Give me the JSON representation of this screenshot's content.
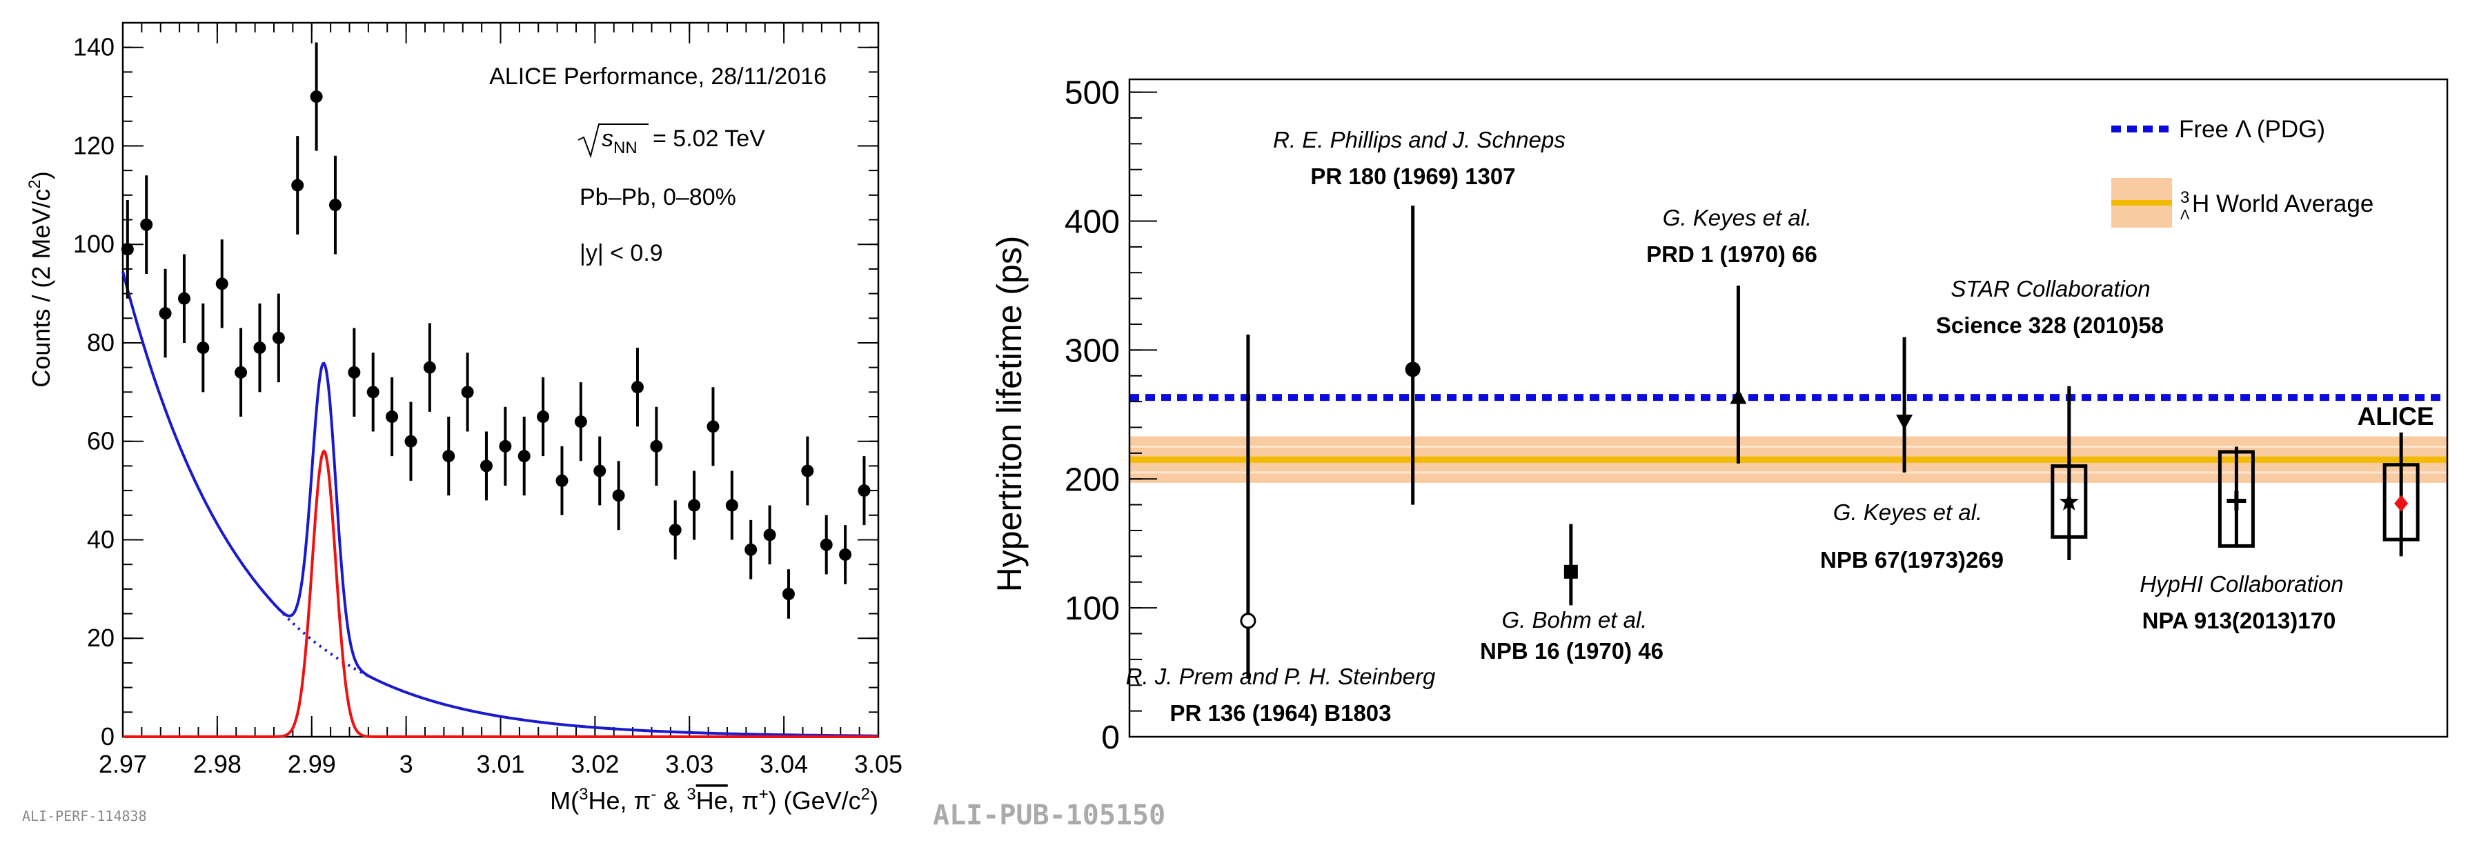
{
  "colors": {
    "fit": "#1a1acc",
    "signal": "#ee1111",
    "pdg": "#0b0bdd",
    "band_outer": "#f8cba0",
    "band_inner": "#f2bb00",
    "alice": "#ee1111",
    "watermark": "#aaaaaa"
  },
  "chart_data": [
    {
      "type": "scatter",
      "title": "ALICE Performance, 28/11/2016",
      "xlabel_parts": {
        "pre": "M(",
        "sup1": "3",
        "he": "He, π",
        "sup2": "-",
        "amp": " & ",
        "sup3": "3",
        "hebar": "He",
        "post": ", π",
        "sup4": "+",
        "unit": ") (GeV/c",
        "sq": "2",
        "close": ")"
      },
      "ylabel_parts": {
        "main": "Counts / (2 MeV/c",
        "sq": "2",
        "close": ")"
      },
      "annotations": {
        "energy_value": "= 5.02 TeV",
        "sqrt_s": "s",
        "nn_sub": "NN",
        "system": "Pb–Pb, 0–80%",
        "rapidity": "|y| < 0.9"
      },
      "xlim": [
        2.97,
        3.05
      ],
      "ylim": [
        0,
        145
      ],
      "xticks": [
        "2.97",
        "2.98",
        "2.99",
        "3",
        "3.01",
        "3.02",
        "3.03",
        "3.04",
        "3.05"
      ],
      "yticks": [
        "0",
        "20",
        "40",
        "60",
        "80",
        "100",
        "120",
        "140"
      ],
      "points": [
        {
          "x": 2.9705,
          "y": 99,
          "e": 10
        },
        {
          "x": 2.9725,
          "y": 104,
          "e": 10
        },
        {
          "x": 2.9745,
          "y": 86,
          "e": 9
        },
        {
          "x": 2.9765,
          "y": 89,
          "e": 9
        },
        {
          "x": 2.9785,
          "y": 79,
          "e": 9
        },
        {
          "x": 2.9805,
          "y": 92,
          "e": 9
        },
        {
          "x": 2.9825,
          "y": 74,
          "e": 9
        },
        {
          "x": 2.9845,
          "y": 79,
          "e": 9
        },
        {
          "x": 2.9865,
          "y": 81,
          "e": 9
        },
        {
          "x": 2.9885,
          "y": 112,
          "e": 10
        },
        {
          "x": 2.9905,
          "y": 130,
          "e": 11
        },
        {
          "x": 2.9925,
          "y": 108,
          "e": 10
        },
        {
          "x": 2.9945,
          "y": 74,
          "e": 9
        },
        {
          "x": 2.9965,
          "y": 70,
          "e": 8
        },
        {
          "x": 2.9985,
          "y": 65,
          "e": 8
        },
        {
          "x": 3.0005,
          "y": 60,
          "e": 8
        },
        {
          "x": 3.0025,
          "y": 75,
          "e": 9
        },
        {
          "x": 3.0045,
          "y": 57,
          "e": 8
        },
        {
          "x": 3.0065,
          "y": 70,
          "e": 8
        },
        {
          "x": 3.0085,
          "y": 55,
          "e": 7
        },
        {
          "x": 3.0105,
          "y": 59,
          "e": 8
        },
        {
          "x": 3.0125,
          "y": 57,
          "e": 8
        },
        {
          "x": 3.0145,
          "y": 65,
          "e": 8
        },
        {
          "x": 3.0165,
          "y": 52,
          "e": 7
        },
        {
          "x": 3.0185,
          "y": 64,
          "e": 8
        },
        {
          "x": 3.0205,
          "y": 54,
          "e": 7
        },
        {
          "x": 3.0225,
          "y": 49,
          "e": 7
        },
        {
          "x": 3.0245,
          "y": 71,
          "e": 8
        },
        {
          "x": 3.0265,
          "y": 59,
          "e": 8
        },
        {
          "x": 3.0285,
          "y": 42,
          "e": 6
        },
        {
          "x": 3.0305,
          "y": 47,
          "e": 7
        },
        {
          "x": 3.0325,
          "y": 63,
          "e": 8
        },
        {
          "x": 3.0345,
          "y": 47,
          "e": 7
        },
        {
          "x": 3.0365,
          "y": 38,
          "e": 6
        },
        {
          "x": 3.0385,
          "y": 41,
          "e": 6
        },
        {
          "x": 3.0405,
          "y": 29,
          "e": 5
        },
        {
          "x": 3.0425,
          "y": 54,
          "e": 7
        },
        {
          "x": 3.0445,
          "y": 39,
          "e": 6
        },
        {
          "x": 3.0465,
          "y": 37,
          "e": 6
        },
        {
          "x": 3.0485,
          "y": 50,
          "e": 7
        }
      ],
      "background": {
        "a": 94.5,
        "b": -0.0783,
        "x0": 2.97,
        "units": "MeV"
      },
      "signal": {
        "mean": 2.9913,
        "sigma": 0.00125,
        "amp": 58
      },
      "watermark": "ALI-PERF-114838"
    },
    {
      "type": "scatter",
      "ylabel": "Hypertriton lifetime (ps)",
      "ylim": [
        0,
        510
      ],
      "yticks": [
        "0",
        "100",
        "200",
        "300",
        "400",
        "500"
      ],
      "pdg": {
        "value": 263.2,
        "label": "Free Λ (PDG)"
      },
      "world_average": {
        "value": 215,
        "err": 18,
        "label_sup": "3",
        "label_sub": "Λ",
        "label_main": "H World Average"
      },
      "measurements": [
        {
          "name": "R. J. Prem and P. H. Steinberg",
          "ref": "PR 136 (1964) B1803",
          "x": 0.09,
          "value": 90,
          "up": 312,
          "low": 45,
          "marker": "open-circle"
        },
        {
          "name": "R. E. Phillips and J. Schneps",
          "ref": "PR 180 (1969) 1307",
          "x": 0.215,
          "value": 285,
          "up": 412,
          "low": 180,
          "marker": "circle"
        },
        {
          "name": "G. Bohm et al.",
          "ref": "NPB 16 (1970) 46",
          "x": 0.335,
          "value": 128,
          "up": 165,
          "low": 102,
          "marker": "square"
        },
        {
          "name": "G. Keyes et al.",
          "ref": "PRD 1 (1970) 66",
          "x": 0.462,
          "value": 263,
          "up": 350,
          "low": 212,
          "marker": "triangle-up"
        },
        {
          "name": "G. Keyes et al.",
          "ref": "NPB 67(1973)269",
          "x": 0.588,
          "value": 245,
          "up": 310,
          "low": 205,
          "marker": "triangle-down"
        },
        {
          "name": "STAR Collaboration",
          "ref": "Science 328 (2010)58",
          "x": 0.713,
          "value": 182,
          "up": 272,
          "low": 137,
          "marker": "star",
          "syst_low": 155,
          "syst_high": 210
        },
        {
          "name": "HypHI Collaboration",
          "ref": "NPA 913(2013)170",
          "x": 0.84,
          "value": 183,
          "up": 225,
          "low": 148,
          "marker": "cross",
          "syst_low": 148,
          "syst_high": 221
        },
        {
          "name": "ALICE",
          "ref": "",
          "x": 0.965,
          "value": 181,
          "up": 236,
          "low": 140,
          "marker": "diamond",
          "syst_low": 153,
          "syst_high": 211
        }
      ],
      "watermark": "ALI-PUB-105150"
    }
  ]
}
